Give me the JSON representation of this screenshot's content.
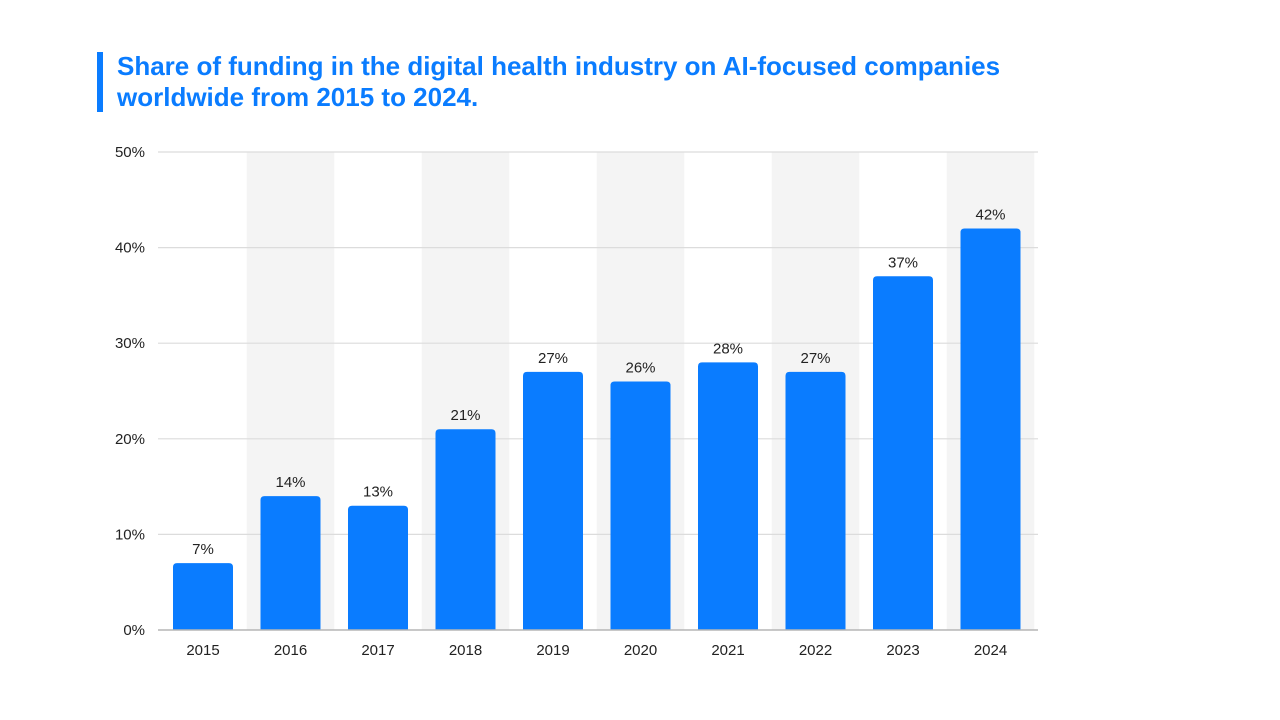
{
  "header": {
    "title": "Share of funding in the digital health industry on AI-focused companies worldwide from 2015 to 2024."
  },
  "colors": {
    "accent": "#0a7cff",
    "bar": "#0a7cff",
    "band": "#f4f4f4",
    "grid": "#dcdcdc",
    "axis": "#b5b5b5"
  },
  "chart_data": {
    "type": "bar",
    "title": "Share of funding in the digital health industry on AI-focused companies worldwide from 2015 to 2024.",
    "xlabel": "",
    "ylabel": "",
    "categories": [
      "2015",
      "2016",
      "2017",
      "2018",
      "2019",
      "2020",
      "2021",
      "2022",
      "2023",
      "2024"
    ],
    "values": [
      7,
      14,
      13,
      21,
      27,
      26,
      28,
      27,
      37,
      42
    ],
    "data_labels": [
      "7%",
      "14%",
      "13%",
      "21%",
      "27%",
      "26%",
      "28%",
      "27%",
      "37%",
      "42%"
    ],
    "ylim": [
      0,
      50
    ],
    "yticks": [
      0,
      10,
      20,
      30,
      40,
      50
    ],
    "ytick_labels": [
      "0%",
      "10%",
      "20%",
      "30%",
      "40%",
      "50%"
    ],
    "grid": true,
    "legend": "none"
  }
}
